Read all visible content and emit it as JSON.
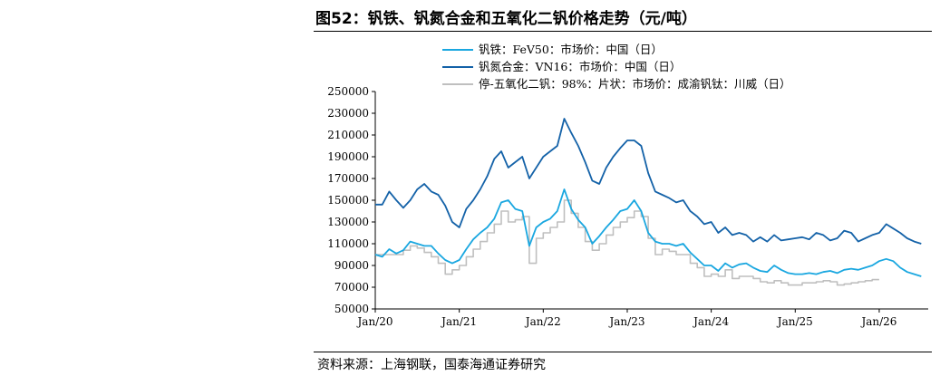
{
  "header": {
    "title": "图52：钒铁、钒氮合金和五氧化二钒价格走势（元/吨）"
  },
  "footer": {
    "source": "资料来源：上海钢联，国泰海通证券研究"
  },
  "chart_data": {
    "type": "line",
    "title": "图52：钒铁、钒氮合金和五氧化二钒价格走势（元/吨）",
    "xlabel": "",
    "ylabel": "",
    "x_ticks": [
      "Jan/20",
      "Jan/21",
      "Jan/22",
      "Jan/23",
      "Jan/24",
      "Jan/25",
      "Jan/26"
    ],
    "x_range": [
      "2020-01",
      "2026-08"
    ],
    "y_ticks": [
      50000,
      70000,
      90000,
      110000,
      130000,
      150000,
      170000,
      190000,
      210000,
      230000,
      250000
    ],
    "ylim": [
      50000,
      250000
    ],
    "grid": false,
    "legend_position": "top",
    "series": [
      {
        "name": "钒铁：FeV50：市场价：中国（日）",
        "color": "#1aa7e0",
        "style": "line",
        "points": [
          [
            "2020-01",
            100000
          ],
          [
            "2020-02",
            98000
          ],
          [
            "2020-03",
            105000
          ],
          [
            "2020-04",
            101000
          ],
          [
            "2020-05",
            104000
          ],
          [
            "2020-06",
            112000
          ],
          [
            "2020-07",
            110000
          ],
          [
            "2020-08",
            108000
          ],
          [
            "2020-09",
            108000
          ],
          [
            "2020-10",
            101000
          ],
          [
            "2020-11",
            95000
          ],
          [
            "2020-12",
            92000
          ],
          [
            "2021-01",
            95000
          ],
          [
            "2021-02",
            105000
          ],
          [
            "2021-03",
            114000
          ],
          [
            "2021-04",
            120000
          ],
          [
            "2021-05",
            125000
          ],
          [
            "2021-06",
            133000
          ],
          [
            "2021-07",
            148000
          ],
          [
            "2021-08",
            150000
          ],
          [
            "2021-09",
            142000
          ],
          [
            "2021-10",
            140000
          ],
          [
            "2021-11",
            108000
          ],
          [
            "2021-12",
            125000
          ],
          [
            "2022-01",
            130000
          ],
          [
            "2022-02",
            133000
          ],
          [
            "2022-03",
            140000
          ],
          [
            "2022-04",
            160000
          ],
          [
            "2022-05",
            142000
          ],
          [
            "2022-06",
            132000
          ],
          [
            "2022-07",
            125000
          ],
          [
            "2022-08",
            110000
          ],
          [
            "2022-09",
            117000
          ],
          [
            "2022-10",
            125000
          ],
          [
            "2022-11",
            132000
          ],
          [
            "2022-12",
            140000
          ],
          [
            "2023-01",
            142000
          ],
          [
            "2023-02",
            150000
          ],
          [
            "2023-03",
            140000
          ],
          [
            "2023-04",
            120000
          ],
          [
            "2023-05",
            112000
          ],
          [
            "2023-06",
            110000
          ],
          [
            "2023-07",
            110000
          ],
          [
            "2023-08",
            108000
          ],
          [
            "2023-09",
            110000
          ],
          [
            "2023-10",
            102000
          ],
          [
            "2023-11",
            96000
          ],
          [
            "2023-12",
            90000
          ],
          [
            "2024-01",
            90000
          ],
          [
            "2024-02",
            85000
          ],
          [
            "2024-03",
            92000
          ],
          [
            "2024-04",
            88000
          ],
          [
            "2024-05",
            91000
          ],
          [
            "2024-06",
            92000
          ],
          [
            "2024-07",
            88000
          ],
          [
            "2024-08",
            85000
          ],
          [
            "2024-09",
            84000
          ],
          [
            "2024-10",
            90000
          ],
          [
            "2024-11",
            86000
          ],
          [
            "2024-12",
            83000
          ],
          [
            "2025-01",
            82000
          ],
          [
            "2025-02",
            82000
          ],
          [
            "2025-03",
            83000
          ],
          [
            "2025-04",
            82000
          ],
          [
            "2025-05",
            84000
          ],
          [
            "2025-06",
            85000
          ],
          [
            "2025-07",
            83000
          ],
          [
            "2025-08",
            86000
          ],
          [
            "2025-09",
            87000
          ],
          [
            "2025-10",
            86000
          ],
          [
            "2025-11",
            88000
          ],
          [
            "2025-12",
            90000
          ],
          [
            "2026-01",
            94000
          ],
          [
            "2026-02",
            96000
          ],
          [
            "2026-03",
            94000
          ],
          [
            "2026-04",
            88000
          ],
          [
            "2026-05",
            84000
          ],
          [
            "2026-06",
            82000
          ],
          [
            "2026-07",
            80000
          ]
        ]
      },
      {
        "name": "钒氮合金：VN16：市场价：中国（日）",
        "color": "#1462a8",
        "style": "line",
        "points": [
          [
            "2020-01",
            146000
          ],
          [
            "2020-02",
            146000
          ],
          [
            "2020-03",
            158000
          ],
          [
            "2020-04",
            150000
          ],
          [
            "2020-05",
            143000
          ],
          [
            "2020-06",
            150000
          ],
          [
            "2020-07",
            160000
          ],
          [
            "2020-08",
            165000
          ],
          [
            "2020-09",
            158000
          ],
          [
            "2020-10",
            155000
          ],
          [
            "2020-11",
            145000
          ],
          [
            "2020-12",
            130000
          ],
          [
            "2021-01",
            125000
          ],
          [
            "2021-02",
            142000
          ],
          [
            "2021-03",
            150000
          ],
          [
            "2021-04",
            160000
          ],
          [
            "2021-05",
            172000
          ],
          [
            "2021-06",
            188000
          ],
          [
            "2021-07",
            195000
          ],
          [
            "2021-08",
            180000
          ],
          [
            "2021-09",
            185000
          ],
          [
            "2021-10",
            190000
          ],
          [
            "2021-11",
            170000
          ],
          [
            "2021-12",
            180000
          ],
          [
            "2022-01",
            190000
          ],
          [
            "2022-02",
            195000
          ],
          [
            "2022-03",
            200000
          ],
          [
            "2022-04",
            225000
          ],
          [
            "2022-05",
            212000
          ],
          [
            "2022-06",
            200000
          ],
          [
            "2022-07",
            185000
          ],
          [
            "2022-08",
            168000
          ],
          [
            "2022-09",
            165000
          ],
          [
            "2022-10",
            180000
          ],
          [
            "2022-11",
            190000
          ],
          [
            "2022-12",
            198000
          ],
          [
            "2023-01",
            205000
          ],
          [
            "2023-02",
            205000
          ],
          [
            "2023-03",
            200000
          ],
          [
            "2023-04",
            175000
          ],
          [
            "2023-05",
            158000
          ],
          [
            "2023-06",
            155000
          ],
          [
            "2023-07",
            152000
          ],
          [
            "2023-08",
            148000
          ],
          [
            "2023-09",
            150000
          ],
          [
            "2023-10",
            140000
          ],
          [
            "2023-11",
            135000
          ],
          [
            "2023-12",
            128000
          ],
          [
            "2024-01",
            130000
          ],
          [
            "2024-02",
            120000
          ],
          [
            "2024-03",
            125000
          ],
          [
            "2024-04",
            118000
          ],
          [
            "2024-05",
            120000
          ],
          [
            "2024-06",
            118000
          ],
          [
            "2024-07",
            112000
          ],
          [
            "2024-08",
            116000
          ],
          [
            "2024-09",
            112000
          ],
          [
            "2024-10",
            118000
          ],
          [
            "2024-11",
            113000
          ],
          [
            "2024-12",
            114000
          ],
          [
            "2025-01",
            115000
          ],
          [
            "2025-02",
            116000
          ],
          [
            "2025-03",
            114000
          ],
          [
            "2025-04",
            120000
          ],
          [
            "2025-05",
            118000
          ],
          [
            "2025-06",
            113000
          ],
          [
            "2025-07",
            115000
          ],
          [
            "2025-08",
            122000
          ],
          [
            "2025-09",
            120000
          ],
          [
            "2025-10",
            112000
          ],
          [
            "2025-11",
            115000
          ],
          [
            "2025-12",
            118000
          ],
          [
            "2026-01",
            120000
          ],
          [
            "2026-02",
            128000
          ],
          [
            "2026-03",
            124000
          ],
          [
            "2026-04",
            120000
          ],
          [
            "2026-05",
            115000
          ],
          [
            "2026-06",
            112000
          ],
          [
            "2026-07",
            110000
          ]
        ]
      },
      {
        "name": "停-五氧化二钒：98%：片状：市场价：成渝钒钛：川威（日）",
        "color": "#bfbfbf",
        "style": "step",
        "points": [
          [
            "2020-01",
            100000
          ],
          [
            "2020-04",
            100000
          ],
          [
            "2020-05",
            104000
          ],
          [
            "2020-06",
            108000
          ],
          [
            "2020-07",
            106000
          ],
          [
            "2020-08",
            102000
          ],
          [
            "2020-09",
            98000
          ],
          [
            "2020-10",
            92000
          ],
          [
            "2020-11",
            82000
          ],
          [
            "2020-12",
            86000
          ],
          [
            "2021-01",
            90000
          ],
          [
            "2021-02",
            98000
          ],
          [
            "2021-03",
            105000
          ],
          [
            "2021-04",
            112000
          ],
          [
            "2021-05",
            120000
          ],
          [
            "2021-06",
            128000
          ],
          [
            "2021-07",
            140000
          ],
          [
            "2021-08",
            130000
          ],
          [
            "2021-09",
            132000
          ],
          [
            "2021-10",
            135000
          ],
          [
            "2021-11",
            92000
          ],
          [
            "2021-12",
            115000
          ],
          [
            "2022-01",
            120000
          ],
          [
            "2022-02",
            125000
          ],
          [
            "2022-03",
            130000
          ],
          [
            "2022-04",
            150000
          ],
          [
            "2022-05",
            138000
          ],
          [
            "2022-06",
            125000
          ],
          [
            "2022-07",
            112000
          ],
          [
            "2022-08",
            104000
          ],
          [
            "2022-09",
            110000
          ],
          [
            "2022-10",
            118000
          ],
          [
            "2022-11",
            125000
          ],
          [
            "2022-12",
            130000
          ],
          [
            "2023-01",
            134000
          ],
          [
            "2023-02",
            140000
          ],
          [
            "2023-03",
            135000
          ],
          [
            "2023-04",
            115000
          ],
          [
            "2023-05",
            100000
          ],
          [
            "2023-06",
            105000
          ],
          [
            "2023-07",
            103000
          ],
          [
            "2023-08",
            100000
          ],
          [
            "2023-09",
            100000
          ],
          [
            "2023-10",
            92000
          ],
          [
            "2023-11",
            88000
          ],
          [
            "2023-12",
            80000
          ],
          [
            "2024-01",
            82000
          ],
          [
            "2024-02",
            80000
          ],
          [
            "2024-03",
            86000
          ],
          [
            "2024-04",
            78000
          ],
          [
            "2024-05",
            80000
          ],
          [
            "2024-06",
            80000
          ],
          [
            "2024-07",
            78000
          ],
          [
            "2024-08",
            75000
          ],
          [
            "2024-09",
            74000
          ],
          [
            "2024-10",
            76000
          ],
          [
            "2024-11",
            74000
          ],
          [
            "2024-12",
            72000
          ],
          [
            "2025-01",
            72000
          ],
          [
            "2025-02",
            74000
          ],
          [
            "2025-03",
            74000
          ],
          [
            "2025-04",
            75000
          ],
          [
            "2025-05",
            76000
          ],
          [
            "2025-06",
            75000
          ],
          [
            "2025-07",
            72000
          ],
          [
            "2025-08",
            73000
          ],
          [
            "2025-09",
            74000
          ],
          [
            "2025-10",
            75000
          ],
          [
            "2025-11",
            76000
          ],
          [
            "2025-12",
            77000
          ],
          [
            "2026-01",
            77000
          ]
        ]
      }
    ]
  }
}
